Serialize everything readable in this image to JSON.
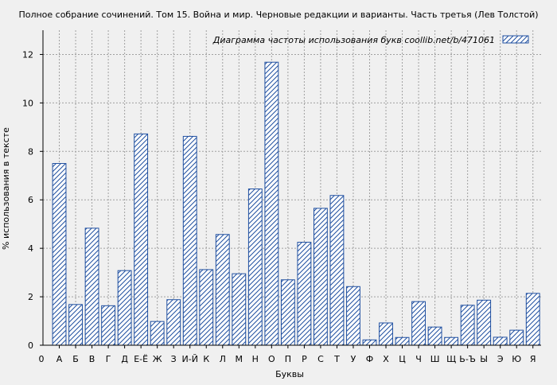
{
  "chart_data": {
    "type": "bar",
    "title": "Полное собрание сочинений. Том 15. Война и мир. Черновые редакции и варианты. Часть третья (Лев Толстой)",
    "xlabel": "Буквы",
    "ylabel": "% использования в тексте",
    "legend": {
      "label": "Диаграмма частоты использования букв  coollib.net/b/471061",
      "position": "top-right"
    },
    "ylim": [
      0,
      13
    ],
    "yticks": [
      0,
      2,
      4,
      6,
      8,
      10,
      12
    ],
    "grid": true,
    "x_origin_label": "0",
    "categories": [
      "А",
      "Б",
      "В",
      "Г",
      "Д",
      "Е-Ё",
      "Ж",
      "З",
      "И-Й",
      "К",
      "Л",
      "М",
      "Н",
      "О",
      "П",
      "Р",
      "С",
      "Т",
      "У",
      "Ф",
      "Х",
      "Ц",
      "Ч",
      "Ш",
      "Щ",
      "Ь-Ъ",
      "Ы",
      "Э",
      "Ю",
      "Я"
    ],
    "values": [
      7.5,
      1.68,
      4.83,
      1.63,
      3.08,
      8.72,
      0.98,
      1.88,
      8.62,
      3.12,
      4.57,
      2.95,
      6.45,
      11.68,
      2.7,
      4.25,
      5.65,
      6.18,
      2.42,
      0.22,
      0.92,
      0.32,
      1.8,
      0.75,
      0.32,
      1.65,
      1.86,
      0.33,
      0.62,
      2.14
    ]
  },
  "colors": {
    "background": "#f0f0f0",
    "plot_background": "#f0f0f0",
    "bar_stroke": "#1f4fa0",
    "hatch": "#1f4fa0",
    "bar_fill": "#ffffff",
    "grid": "#a0a0a0",
    "axis": "#000000"
  }
}
